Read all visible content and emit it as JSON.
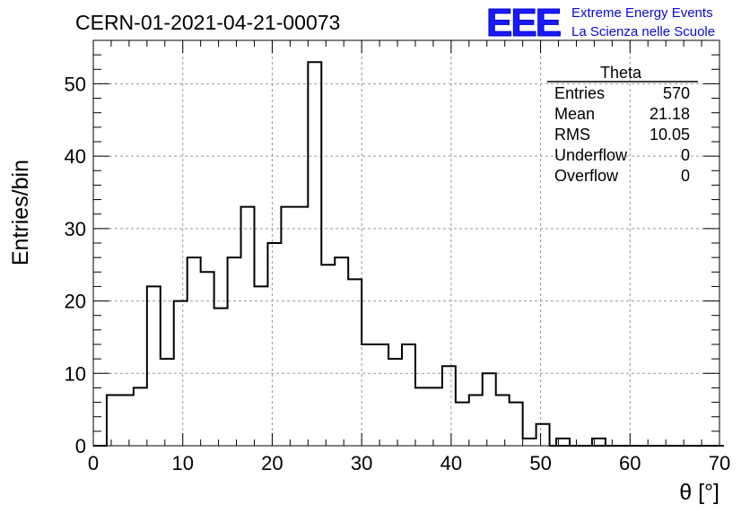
{
  "header": {
    "run_title": "CERN-01-2021-04-21-00073",
    "logo_text": "EEE",
    "logo_line1": "Extreme Energy Events",
    "logo_line2": "La Scienza nelle Scuole"
  },
  "stats_box": {
    "name": "Theta",
    "rows": [
      {
        "label": "Entries",
        "value": "570"
      },
      {
        "label": "Mean",
        "value": "21.18"
      },
      {
        "label": "RMS",
        "value": "10.05"
      },
      {
        "label": "Underflow",
        "value": "0"
      },
      {
        "label": "Overflow",
        "value": "0"
      }
    ]
  },
  "chart_data": {
    "type": "histogram",
    "title": "CERN-01-2021-04-21-00073",
    "xlabel": "θ [°]",
    "ylabel": "Entries/bin",
    "xlim": [
      0,
      70
    ],
    "ylim": [
      0,
      56
    ],
    "grid": true,
    "bin_width": 1.5,
    "bin_edges_start": 0,
    "x_ticks": [
      0,
      10,
      20,
      30,
      40,
      50,
      60,
      70
    ],
    "y_ticks": [
      0,
      10,
      20,
      30,
      40,
      50
    ],
    "values": [
      0,
      7,
      7,
      8,
      22,
      12,
      20,
      26,
      24,
      19,
      26,
      33,
      22,
      28,
      33,
      33,
      53,
      25,
      26,
      23,
      14,
      14,
      12,
      14,
      8,
      8,
      11,
      6,
      7,
      10,
      7,
      6,
      1,
      3,
      0,
      0,
      0,
      0,
      0,
      0,
      0,
      0,
      0,
      0,
      0,
      0,
      0,
      0,
      0,
      0,
      0,
      0,
      0,
      0,
      0,
      0,
      0,
      0,
      0,
      0,
      0,
      0,
      0,
      0,
      0,
      0,
      0,
      0,
      0,
      0,
      0,
      0,
      0,
      0,
      0,
      0,
      0,
      0,
      0,
      0,
      0,
      0,
      0,
      0,
      0,
      0,
      0,
      0,
      0,
      0,
      0,
      0,
      0,
      0,
      0,
      0,
      0,
      0,
      0,
      0
    ],
    "extra_bins": [
      {
        "x_start": 51.75,
        "x_end": 53.25,
        "value": 1
      },
      {
        "x_start": 55.75,
        "x_end": 57.25,
        "value": 1
      }
    ],
    "colors": {
      "line": "#000000",
      "grid": "#999999",
      "logo": "#1a1aff"
    }
  }
}
